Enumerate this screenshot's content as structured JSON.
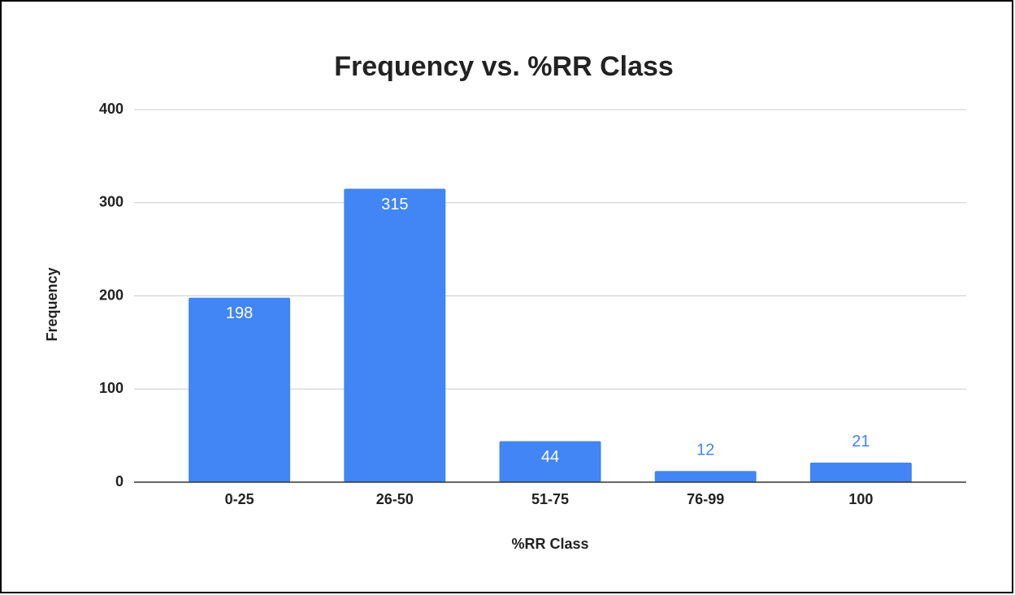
{
  "chart_data": {
    "type": "bar",
    "title": "Frequency vs. %RR Class",
    "x_label": "%RR Class",
    "y_label": "Frequency",
    "categories": [
      "0-25",
      "26-50",
      "51-75",
      "76-99",
      "100"
    ],
    "values": [
      198,
      315,
      44,
      12,
      21
    ],
    "color": "#4285f4",
    "ylim": [
      0,
      400
    ],
    "yticks": [
      0,
      100,
      200,
      300,
      400
    ],
    "grid": true
  }
}
